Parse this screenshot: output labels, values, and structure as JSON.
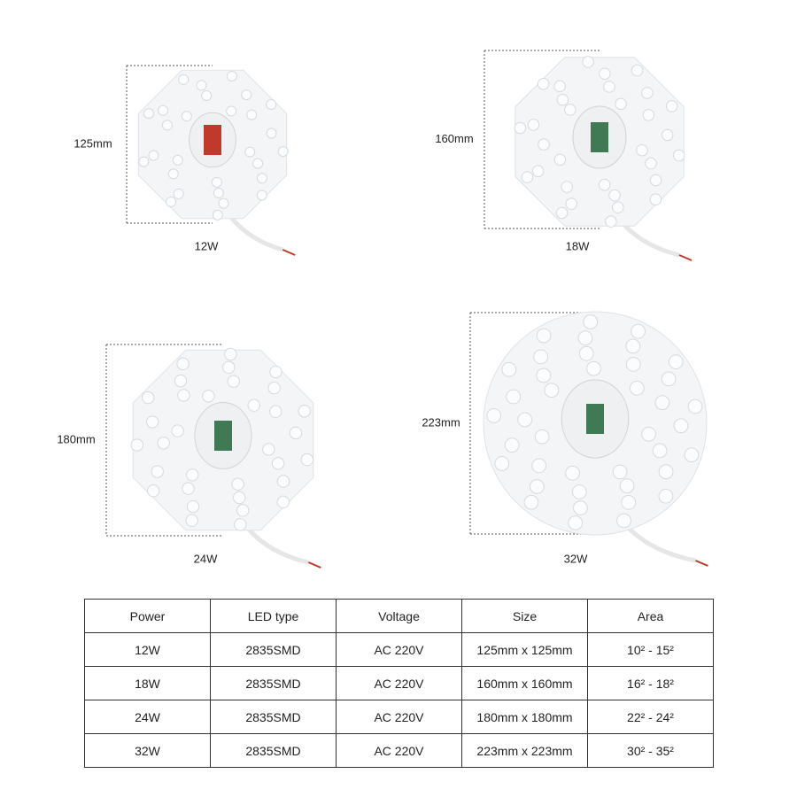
{
  "products": [
    {
      "size": "125mm",
      "power": "12W"
    },
    {
      "size": "160mm",
      "power": "18W"
    },
    {
      "size": "180mm",
      "power": "24W"
    },
    {
      "size": "223mm",
      "power": "32W"
    }
  ],
  "table": {
    "header": [
      "Power",
      "LED type",
      "Voltage",
      "Size",
      "Area"
    ],
    "rows": [
      [
        "12W",
        "2835SMD",
        "AC 220V",
        "125mm x 125mm",
        "10² - 15²"
      ],
      [
        "18W",
        "2835SMD",
        "AC 220V",
        "160mm x 160mm",
        "16² - 18²"
      ],
      [
        "24W",
        "2835SMD",
        "AC 220V",
        "180mm x 180mm",
        "22² - 24²"
      ],
      [
        "32W",
        "2835SMD",
        "AC 220V",
        "223mm x 223mm",
        "30² - 35²"
      ]
    ]
  }
}
